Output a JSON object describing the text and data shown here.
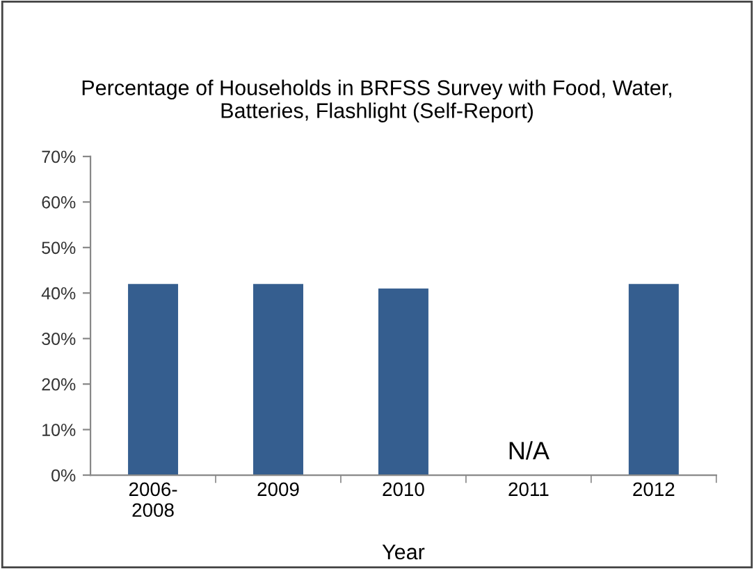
{
  "chart_data": {
    "type": "bar",
    "title": "Percentage of Households in BRFSS Survey with Food, Water,\nBatteries, Flashlight (Self-Report)",
    "xlabel": "Year",
    "categories": [
      "2006-\n2008",
      "2009",
      "2010",
      "2011",
      "2012"
    ],
    "values": [
      42,
      42,
      41,
      null,
      42
    ],
    "color": "#355e8f",
    "ylim": [
      0,
      70
    ],
    "yticks": [
      {
        "value": 0,
        "label": "0%"
      },
      {
        "value": 10,
        "label": "10%"
      },
      {
        "value": 20,
        "label": "20%"
      },
      {
        "value": 30,
        "label": "30%"
      },
      {
        "value": 40,
        "label": "40%"
      },
      {
        "value": 50,
        "label": "50%"
      },
      {
        "value": 60,
        "label": "60%"
      },
      {
        "value": 70,
        "label": "70%"
      }
    ],
    "annotations": [
      "N/A"
    ],
    "grid": false,
    "legend": false
  }
}
